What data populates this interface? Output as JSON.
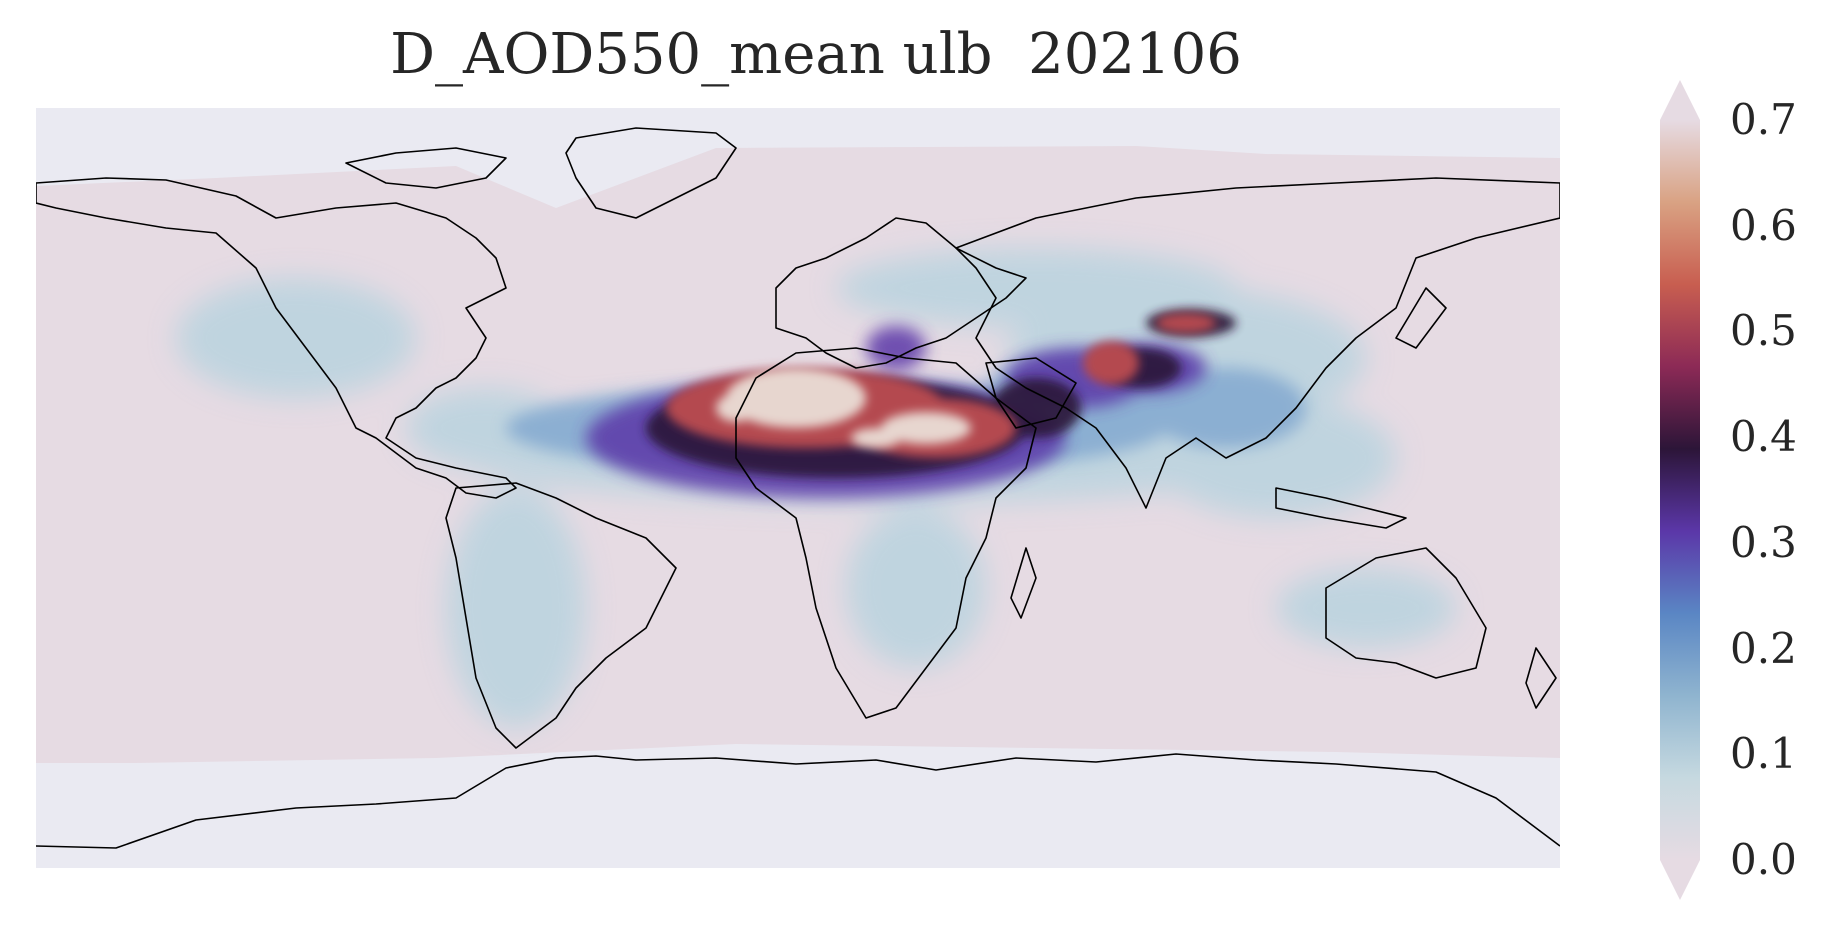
{
  "title": "D_AOD550_mean ulb  202106",
  "colorbar": {
    "ticks": [
      "0.0",
      "0.1",
      "0.2",
      "0.3",
      "0.4",
      "0.5",
      "0.6",
      "0.7"
    ],
    "min": 0.0,
    "max": 0.7,
    "extend": "both",
    "colormap_stops": [
      "#e6dbe3",
      "#c6d9e0",
      "#8fb4cf",
      "#5a86c4",
      "#5b37a8",
      "#2c1538",
      "#8c2a56",
      "#c85e50",
      "#d9a283",
      "#e6dbe3"
    ]
  },
  "map": {
    "projection": "PlateCarree",
    "background_low": "#e6dbe3",
    "no_data_color": "#eaeaf2",
    "coastline_color": "#000000"
  }
}
